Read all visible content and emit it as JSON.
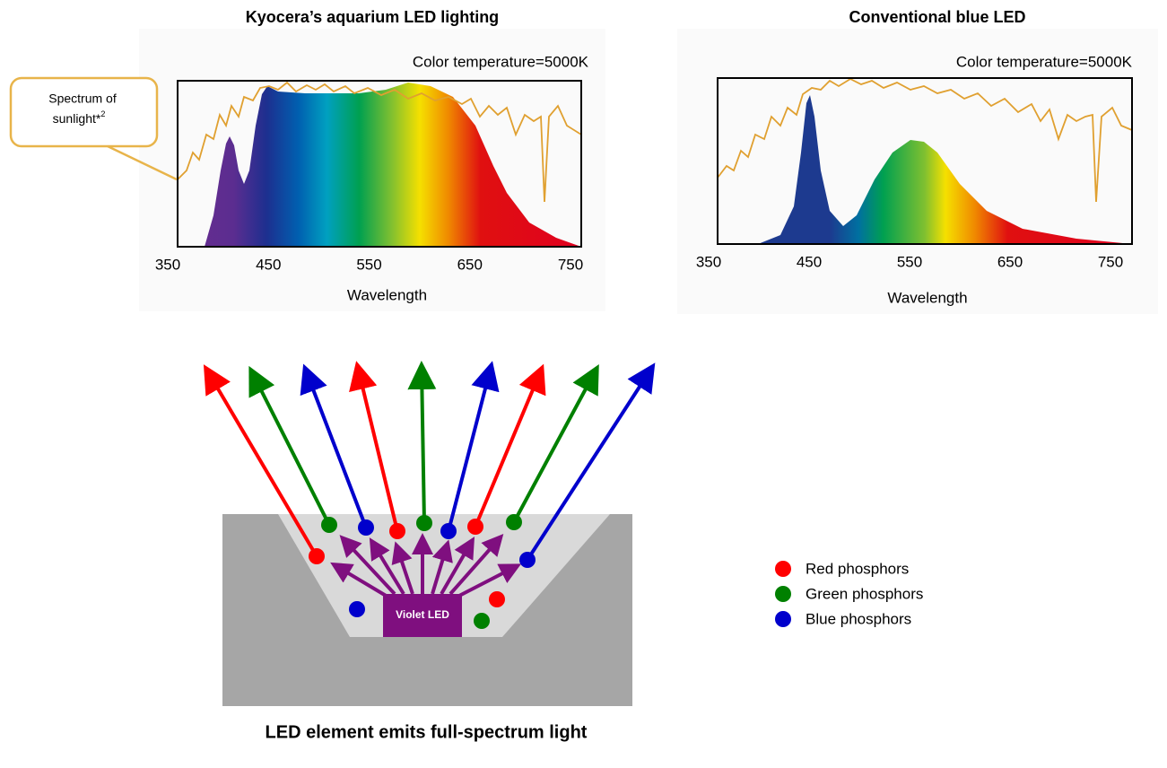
{
  "panels": [
    {
      "title": "Kyocera’s aquarium LED lighting",
      "annotation": "Color temperature=5000K",
      "x_label": "Wavelength",
      "xlim": [
        350,
        750
      ],
      "xticks": [
        350,
        450,
        550,
        650,
        750
      ]
    },
    {
      "title": "Conventional blue LED",
      "annotation": "Color temperature=5000K",
      "x_label": "Wavelength",
      "xlim": [
        350,
        750
      ],
      "xticks": [
        350,
        450,
        550,
        650,
        750
      ]
    }
  ],
  "callout": {
    "line1": "Spectrum of",
    "line2": "sunlight*",
    "superscript": "2"
  },
  "led_label": "Violet LED",
  "legend": [
    {
      "label": "Red phosphors",
      "color": "#ff0000"
    },
    {
      "label": "Green phosphors",
      "color": "#008000"
    },
    {
      "label": "Blue phosphors",
      "color": "#0000cc"
    }
  ],
  "caption": "LED element emits full-spectrum light"
}
